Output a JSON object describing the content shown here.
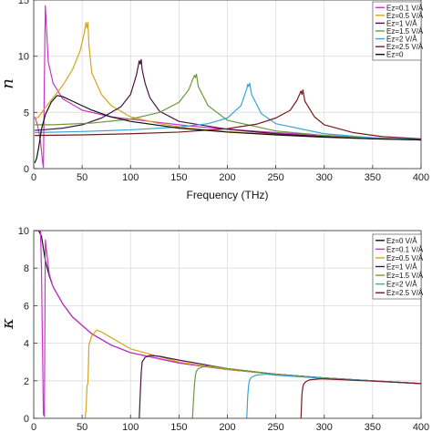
{
  "chart_data": [
    {
      "type": "line",
      "title": "",
      "xlabel": "Frequency (THz)",
      "ylabel": "n",
      "xlim": [
        0,
        400
      ],
      "ylim": [
        0,
        15
      ],
      "xticks": [
        0,
        50,
        100,
        150,
        200,
        250,
        300,
        350,
        400
      ],
      "xtick_labels": [
        "0",
        "50",
        "100",
        "150",
        "200",
        "250",
        "300",
        "350",
        "400"
      ],
      "yticks": [
        0,
        5,
        10,
        15
      ],
      "grid": true,
      "legend_position": "top-right",
      "series": [
        {
          "name": "Ez=0.1 V/Å",
          "color": "#cc33cc",
          "x": [
            1,
            2,
            3,
            4,
            5,
            6,
            7,
            8,
            9,
            10,
            11,
            12,
            15,
            20,
            30,
            50,
            80,
            120,
            160,
            200,
            250,
            300,
            350,
            400
          ],
          "y": [
            4.6,
            4.4,
            4.1,
            3.8,
            3.4,
            3.0,
            2.4,
            1.6,
            0.7,
            0.1,
            8,
            14.5,
            9.5,
            7.6,
            6.2,
            5.2,
            4.6,
            4.2,
            3.8,
            3.5,
            3.2,
            2.95,
            2.75,
            2.55
          ]
        },
        {
          "name": "Ez=0.5 V/Å",
          "color": "#d4a520",
          "x": [
            1,
            5,
            10,
            20,
            30,
            40,
            48,
            52,
            54,
            55,
            56,
            57,
            60,
            70,
            80,
            100,
            130,
            160,
            200,
            250,
            300,
            350,
            400
          ],
          "y": [
            4.4,
            4.6,
            5.2,
            6.3,
            7.4,
            8.8,
            10.5,
            12,
            13,
            12.5,
            13,
            11,
            8.5,
            6.6,
            5.6,
            4.6,
            4.0,
            3.6,
            3.3,
            3.05,
            2.85,
            2.7,
            2.6
          ]
        },
        {
          "name": "Ez=1 V/Å",
          "color": "#4a1446",
          "x": [
            1,
            10,
            30,
            50,
            70,
            90,
            100,
            106,
            109,
            110,
            111,
            112,
            115,
            120,
            130,
            150,
            200,
            250,
            300,
            350,
            400
          ],
          "y": [
            3.4,
            3.45,
            3.6,
            3.9,
            4.5,
            5.5,
            6.6,
            8.3,
            9.6,
            9.3,
            9.7,
            8.8,
            7.6,
            6.3,
            5.1,
            4.2,
            3.5,
            3.1,
            2.85,
            2.65,
            2.55
          ]
        },
        {
          "name": "Ez=1.5 V/Å",
          "color": "#6b9a3a",
          "x": [
            1,
            20,
            60,
            100,
            130,
            150,
            160,
            164,
            166,
            167,
            168,
            170,
            180,
            200,
            250,
            300,
            350,
            400
          ],
          "y": [
            3.9,
            3.9,
            4.05,
            4.4,
            5.0,
            5.9,
            7.0,
            7.9,
            8.3,
            8.1,
            8.4,
            7.3,
            5.6,
            4.3,
            3.35,
            2.95,
            2.7,
            2.6
          ]
        },
        {
          "name": "Ez=2 V/Å",
          "color": "#3ba4d4",
          "x": [
            1,
            50,
            100,
            150,
            180,
            200,
            214,
            220,
            221,
            222,
            223,
            225,
            235,
            250,
            300,
            350,
            400
          ],
          "y": [
            3.2,
            3.3,
            3.45,
            3.7,
            4.0,
            4.5,
            5.6,
            7.1,
            7.5,
            7.3,
            7.6,
            6.6,
            4.9,
            4.0,
            3.1,
            2.75,
            2.6
          ]
        },
        {
          "name": "Ez=2.5 V/Å",
          "color": "#7a1a1e",
          "x": [
            1,
            50,
            100,
            150,
            200,
            230,
            250,
            265,
            272,
            276,
            277,
            278,
            280,
            290,
            300,
            330,
            360,
            400
          ],
          "y": [
            2.95,
            3.0,
            3.1,
            3.25,
            3.55,
            3.95,
            4.5,
            5.2,
            6.1,
            6.9,
            6.6,
            7.0,
            6.0,
            4.6,
            3.9,
            3.2,
            2.85,
            2.65
          ]
        },
        {
          "name": "Ez=0",
          "color": "#111111",
          "x": [
            1,
            3,
            5,
            8,
            12,
            18,
            24,
            30,
            40,
            60,
            80,
            100,
            150,
            200,
            250,
            300,
            350,
            400
          ],
          "y": [
            0.5,
            0.9,
            1.8,
            3.5,
            4.8,
            5.9,
            6.5,
            6.4,
            6.0,
            5.2,
            4.6,
            4.2,
            3.6,
            3.25,
            3.0,
            2.8,
            2.65,
            2.55
          ]
        }
      ]
    },
    {
      "type": "line",
      "title": "",
      "xlabel": "",
      "ylabel": "κ",
      "xlim": [
        0,
        400
      ],
      "ylim": [
        0,
        10
      ],
      "xticks": [
        0,
        50,
        100,
        150,
        200,
        250,
        300,
        350,
        400
      ],
      "xtick_labels": [
        "0",
        "50",
        "100",
        "150",
        "200",
        "250",
        "300",
        "350",
        "400"
      ],
      "yticks": [
        0,
        2,
        4,
        6,
        8,
        10
      ],
      "grid": true,
      "legend_position": "top-right",
      "series": [
        {
          "name": "Ez=0 V/Å",
          "color": "#111111",
          "x": [
            1,
            3,
            5,
            8,
            12,
            16,
            20,
            30,
            40,
            60,
            80,
            100,
            150,
            200,
            250,
            300,
            350,
            400
          ],
          "y": [
            10,
            10,
            10,
            9.7,
            8.4,
            7.6,
            7.0,
            6.1,
            5.4,
            4.5,
            3.9,
            3.5,
            2.95,
            2.6,
            2.35,
            2.15,
            2.0,
            1.85
          ]
        },
        {
          "name": "Ez=0.1 V/Å",
          "color": "#cc33cc",
          "x": [
            1,
            3,
            5,
            7,
            8,
            9,
            10,
            11,
            12,
            16,
            20,
            30,
            40,
            60,
            80,
            100,
            150,
            200,
            250,
            300,
            350,
            400
          ],
          "y": [
            10,
            10,
            10,
            10,
            8,
            4,
            0.2,
            0.1,
            9.5,
            7.7,
            7.0,
            6.1,
            5.4,
            4.5,
            3.9,
            3.5,
            2.95,
            2.6,
            2.35,
            2.15,
            2.0,
            1.85
          ]
        },
        {
          "name": "Ez=0.5 V/Å",
          "color": "#d4a520",
          "x": [
            53,
            54,
            55,
            56,
            57,
            60,
            65,
            70,
            80,
            100,
            150,
            200,
            250,
            300,
            350,
            400
          ],
          "y": [
            0,
            0.4,
            1.7,
            1.9,
            3.9,
            4.4,
            4.7,
            4.6,
            4.3,
            3.7,
            3.0,
            2.6,
            2.35,
            2.15,
            2.0,
            1.85
          ]
        },
        {
          "name": "Ez=1 V/Å",
          "color": "#4a1446",
          "x": [
            109,
            110,
            111,
            112,
            115,
            120,
            130,
            150,
            200,
            250,
            300,
            350,
            400
          ],
          "y": [
            0,
            1.3,
            2.4,
            3.0,
            3.25,
            3.35,
            3.3,
            3.1,
            2.65,
            2.35,
            2.15,
            2.0,
            1.85
          ]
        },
        {
          "name": "Ez=1.5 V/Å",
          "color": "#6b9a3a",
          "x": [
            164,
            165,
            166,
            167,
            168,
            170,
            175,
            180,
            200,
            250,
            300,
            350,
            400
          ],
          "y": [
            0,
            1.0,
            1.8,
            2.3,
            2.5,
            2.65,
            2.75,
            2.8,
            2.65,
            2.35,
            2.15,
            2.0,
            1.85
          ]
        },
        {
          "name": "Ez=2 V/Å",
          "color": "#3ba4d4",
          "x": [
            220,
            221,
            222,
            223,
            225,
            230,
            240,
            250,
            300,
            350,
            400
          ],
          "y": [
            0,
            1.2,
            1.8,
            2.05,
            2.2,
            2.3,
            2.35,
            2.3,
            2.12,
            2.0,
            1.85
          ]
        },
        {
          "name": "Ez=2.5 V/Å",
          "color": "#7a1a1e",
          "x": [
            276,
            277,
            278,
            279,
            281,
            285,
            295,
            300,
            350,
            400
          ],
          "y": [
            0,
            1.3,
            1.7,
            1.85,
            1.95,
            2.05,
            2.1,
            2.1,
            1.98,
            1.85
          ]
        }
      ]
    }
  ]
}
